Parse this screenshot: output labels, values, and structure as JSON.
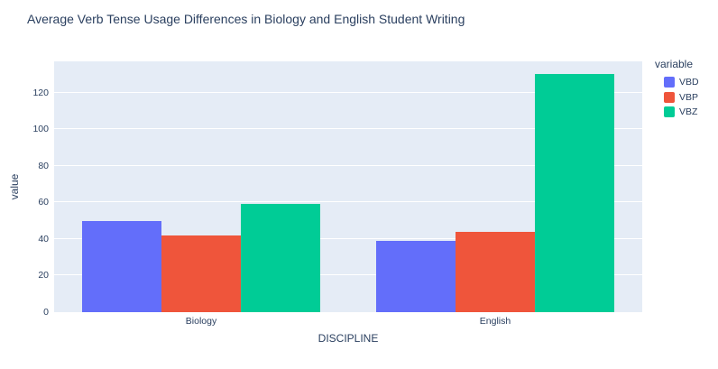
{
  "chart_data": {
    "type": "bar",
    "title": "Average Verb Tense Usage Differences in Biology and English Student Writing",
    "xlabel": "DISCIPLINE",
    "ylabel": "value",
    "categories": [
      "Biology",
      "English"
    ],
    "series": [
      {
        "name": "VBD",
        "color": "#636EFA",
        "values": [
          50,
          39
        ]
      },
      {
        "name": "VBP",
        "color": "#EF553B",
        "values": [
          42,
          44
        ]
      },
      {
        "name": "VBZ",
        "color": "#00CC96",
        "values": [
          59,
          130
        ]
      }
    ],
    "ylim": [
      0,
      137
    ],
    "yticks": [
      0,
      20,
      40,
      60,
      80,
      100,
      120
    ],
    "grid": true,
    "legend_title": "variable",
    "legend_position": "outside-top-right",
    "colors": {
      "plot_background": "#E5ECF6",
      "gridline": "#FFFFFF",
      "text": "#2a3f5f"
    }
  }
}
